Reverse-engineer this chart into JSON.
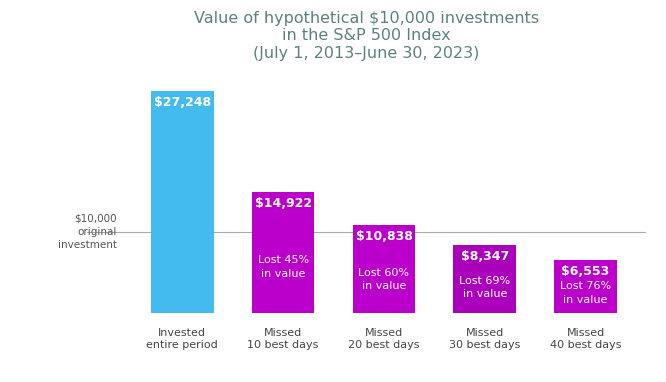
{
  "title": "Value of hypothetical $10,000 investments\nin the S&P 500 Index\n(July 1, 2013–June 30, 2023)",
  "categories": [
    "Invested\nentire period",
    "Missed\n10 best days",
    "Missed\n20 best days",
    "Missed\n30 best days",
    "Missed\n40 best days"
  ],
  "values": [
    27248,
    14922,
    10838,
    8347,
    6553
  ],
  "bar_colors": [
    "#44BBEE",
    "#BB00CC",
    "#BB00CC",
    "#AA00BB",
    "#BB00CC"
  ],
  "value_labels": [
    "$27,248",
    "$14,922",
    "$10,838",
    "$8,347",
    "$6,553"
  ],
  "sub_labels": [
    "",
    "Lost 45%\nin value",
    "Lost 60%\nin value",
    "Lost 69%\nin value",
    "Lost 76%\nin value"
  ],
  "reference_line": 10000,
  "reference_text": "$10,000\noriginal\ninvestment",
  "title_color": "#5C8080",
  "ylim_max": 30000,
  "figsize": [
    6.66,
    3.82
  ],
  "dpi": 100,
  "background_color": "#FFFFFF"
}
